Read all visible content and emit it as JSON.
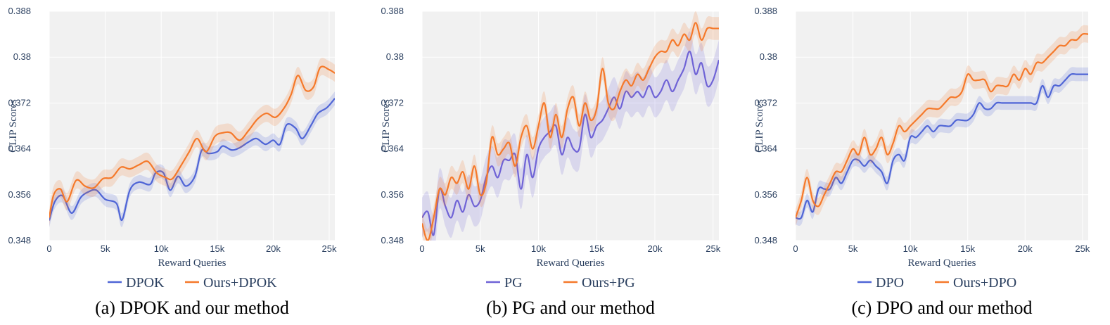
{
  "colors": {
    "plot_bg": "#f1f1f1",
    "grid": "#ffffff",
    "text": "#2a3f5f",
    "blue": "#4f65d6",
    "purple": "#6f63d6",
    "orange": "#f5792a"
  },
  "chart_data": [
    {
      "type": "line",
      "caption": "(a) DPOK and our method",
      "xlabel": "Reward Queries",
      "ylabel": "CLIP Scores",
      "xlim": [
        0,
        25500
      ],
      "ylim": [
        0.348,
        0.388
      ],
      "xticks": [
        0,
        5000,
        10000,
        15000,
        20000,
        25000
      ],
      "xtick_labels": [
        "0",
        "5k",
        "10k",
        "15k",
        "20k",
        "25k"
      ],
      "yticks": [
        0.348,
        0.356,
        0.364,
        0.372,
        0.38,
        0.388
      ],
      "ytick_labels": [
        "0.348",
        "0.356",
        "0.364",
        "0.372",
        "0.38",
        "0.388"
      ],
      "series": [
        {
          "name": "DPOK",
          "color": "#4f65d6",
          "band": 0.0012,
          "x": [
            0,
            500,
            1200,
            2000,
            2800,
            3500,
            4200,
            5000,
            6000,
            6500,
            7200,
            8000,
            9000,
            9500,
            10200,
            10800,
            11500,
            12200,
            13000,
            13600,
            14200,
            15000,
            15500,
            16300,
            17000,
            17800,
            18500,
            19300,
            20000,
            20600,
            21200,
            22000,
            22600,
            23400,
            24000,
            24800,
            25500
          ],
          "values": [
            0.3515,
            0.3548,
            0.3558,
            0.3528,
            0.3555,
            0.3565,
            0.3568,
            0.3552,
            0.3545,
            0.3516,
            0.3568,
            0.3582,
            0.3578,
            0.3598,
            0.3598,
            0.3568,
            0.3592,
            0.3575,
            0.3592,
            0.3637,
            0.3632,
            0.3635,
            0.3645,
            0.3638,
            0.3642,
            0.3652,
            0.3658,
            0.3648,
            0.3655,
            0.3648,
            0.3682,
            0.3676,
            0.3658,
            0.3682,
            0.3702,
            0.3712,
            0.3728
          ]
        },
        {
          "name": "Ours+DPOK",
          "color": "#f5792a",
          "band": 0.0015,
          "x": [
            0,
            400,
            1000,
            1600,
            2400,
            3200,
            4000,
            4800,
            5600,
            6400,
            7200,
            8000,
            8800,
            9600,
            10400,
            11000,
            11800,
            12500,
            13200,
            14000,
            14800,
            15500,
            16200,
            17000,
            17800,
            18600,
            19400,
            20200,
            21000,
            21600,
            22200,
            22900,
            23600,
            24200,
            25000,
            25500
          ],
          "values": [
            0.352,
            0.356,
            0.357,
            0.3548,
            0.3585,
            0.3575,
            0.3572,
            0.3588,
            0.359,
            0.3608,
            0.3605,
            0.3612,
            0.3618,
            0.3598,
            0.359,
            0.3588,
            0.3612,
            0.3635,
            0.3658,
            0.3635,
            0.3662,
            0.3668,
            0.3668,
            0.3655,
            0.3672,
            0.3692,
            0.3702,
            0.3695,
            0.3712,
            0.3735,
            0.3768,
            0.3742,
            0.3748,
            0.3782,
            0.3778,
            0.3772
          ]
        }
      ]
    },
    {
      "type": "line",
      "caption": "(b) PG and our method",
      "xlabel": "Reward Queries",
      "ylabel": "CLIP Scores",
      "xlim": [
        0,
        25500
      ],
      "ylim": [
        0.348,
        0.388
      ],
      "xticks": [
        0,
        5000,
        10000,
        15000,
        20000,
        25000
      ],
      "xtick_labels": [
        "0",
        "5k",
        "10k",
        "15k",
        "20k",
        "25k"
      ],
      "yticks": [
        0.348,
        0.356,
        0.364,
        0.372,
        0.38,
        0.388
      ],
      "ytick_labels": [
        "0.348",
        "0.356",
        "0.364",
        "0.372",
        "0.38",
        "0.388"
      ],
      "series": [
        {
          "name": "PG",
          "color": "#6f63d6",
          "band": 0.0035,
          "x": [
            0,
            500,
            1000,
            1500,
            2000,
            2500,
            3000,
            3500,
            4000,
            4500,
            5000,
            5500,
            6000,
            6500,
            7000,
            7500,
            8000,
            8500,
            9000,
            9500,
            10000,
            10500,
            11000,
            11500,
            12000,
            12500,
            13000,
            13500,
            14000,
            14500,
            15000,
            15500,
            16000,
            16500,
            17000,
            17500,
            18000,
            18500,
            19000,
            19500,
            20000,
            20500,
            21000,
            21500,
            22000,
            22500,
            23000,
            23500,
            24000,
            24500,
            25000,
            25500
          ],
          "values": [
            0.352,
            0.353,
            0.349,
            0.357,
            0.354,
            0.352,
            0.355,
            0.353,
            0.356,
            0.354,
            0.355,
            0.359,
            0.361,
            0.359,
            0.362,
            0.362,
            0.363,
            0.357,
            0.363,
            0.359,
            0.364,
            0.366,
            0.367,
            0.368,
            0.363,
            0.366,
            0.364,
            0.364,
            0.37,
            0.366,
            0.368,
            0.369,
            0.371,
            0.373,
            0.371,
            0.374,
            0.373,
            0.374,
            0.373,
            0.375,
            0.373,
            0.374,
            0.376,
            0.374,
            0.376,
            0.378,
            0.381,
            0.377,
            0.379,
            0.375,
            0.376,
            0.3795
          ]
        },
        {
          "name": "Ours+PG",
          "color": "#f5792a",
          "band": 0.002,
          "x": [
            0,
            500,
            1000,
            1500,
            2000,
            2500,
            3000,
            3500,
            4000,
            4500,
            5000,
            5500,
            6000,
            6500,
            7000,
            7500,
            8000,
            8500,
            9000,
            9500,
            10000,
            10500,
            11000,
            11500,
            12000,
            12500,
            13000,
            13500,
            14000,
            14500,
            15000,
            15500,
            16000,
            16500,
            17000,
            17500,
            18000,
            18500,
            19000,
            19500,
            20000,
            20500,
            21000,
            21500,
            22000,
            22500,
            23000,
            23500,
            24000,
            24500,
            25000,
            25500
          ],
          "values": [
            0.351,
            0.348,
            0.352,
            0.357,
            0.356,
            0.359,
            0.358,
            0.36,
            0.357,
            0.361,
            0.356,
            0.358,
            0.366,
            0.363,
            0.364,
            0.365,
            0.361,
            0.366,
            0.368,
            0.364,
            0.368,
            0.372,
            0.366,
            0.37,
            0.366,
            0.371,
            0.373,
            0.368,
            0.372,
            0.369,
            0.371,
            0.378,
            0.372,
            0.371,
            0.374,
            0.376,
            0.375,
            0.377,
            0.376,
            0.378,
            0.38,
            0.381,
            0.381,
            0.383,
            0.382,
            0.384,
            0.383,
            0.386,
            0.383,
            0.385,
            0.385,
            0.385
          ]
        }
      ]
    },
    {
      "type": "line",
      "caption": "(c) DPO and our method",
      "xlabel": "Reward Queries",
      "ylabel": "CLIP Scores",
      "xlim": [
        0,
        25500
      ],
      "ylim": [
        0.348,
        0.388
      ],
      "xticks": [
        0,
        5000,
        10000,
        15000,
        20000,
        25000
      ],
      "xtick_labels": [
        "0",
        "5k",
        "10k",
        "15k",
        "20k",
        "25k"
      ],
      "yticks": [
        0.348,
        0.356,
        0.364,
        0.372,
        0.38,
        0.388
      ],
      "ytick_labels": [
        "0.348",
        "0.356",
        "0.364",
        "0.372",
        "0.38",
        "0.388"
      ],
      "series": [
        {
          "name": "DPO",
          "color": "#4f65d6",
          "band": 0.0012,
          "x": [
            0,
            500,
            1000,
            1500,
            2000,
            2500,
            3000,
            3500,
            4000,
            4500,
            5000,
            5500,
            6000,
            6500,
            7000,
            7500,
            8000,
            8500,
            9000,
            9500,
            10000,
            10500,
            11000,
            11500,
            12000,
            12500,
            13000,
            13500,
            14000,
            14500,
            15000,
            15500,
            16000,
            16500,
            17000,
            17500,
            18000,
            18500,
            19000,
            19500,
            20000,
            20500,
            21000,
            21500,
            22000,
            22500,
            23000,
            23500,
            24000,
            24500,
            25000,
            25500
          ],
          "values": [
            0.352,
            0.352,
            0.355,
            0.353,
            0.357,
            0.357,
            0.357,
            0.359,
            0.358,
            0.36,
            0.362,
            0.362,
            0.361,
            0.362,
            0.361,
            0.36,
            0.358,
            0.362,
            0.363,
            0.362,
            0.366,
            0.366,
            0.367,
            0.368,
            0.367,
            0.368,
            0.368,
            0.368,
            0.369,
            0.369,
            0.369,
            0.37,
            0.372,
            0.371,
            0.371,
            0.372,
            0.372,
            0.372,
            0.372,
            0.372,
            0.372,
            0.372,
            0.372,
            0.375,
            0.373,
            0.375,
            0.375,
            0.376,
            0.377,
            0.377,
            0.377,
            0.377
          ]
        },
        {
          "name": "Ours+DPO",
          "color": "#f5792a",
          "band": 0.0015,
          "x": [
            0,
            500,
            1000,
            1500,
            2000,
            2500,
            3000,
            3500,
            4000,
            4500,
            5000,
            5500,
            6000,
            6500,
            7000,
            7500,
            8000,
            8500,
            9000,
            9500,
            10000,
            10500,
            11000,
            11500,
            12000,
            12500,
            13000,
            13500,
            14000,
            14500,
            15000,
            15500,
            16000,
            16500,
            17000,
            17500,
            18000,
            18500,
            19000,
            19500,
            20000,
            20500,
            21000,
            21500,
            22000,
            22500,
            23000,
            23500,
            24000,
            24500,
            25000,
            25500
          ],
          "values": [
            0.352,
            0.355,
            0.359,
            0.355,
            0.354,
            0.356,
            0.358,
            0.36,
            0.36,
            0.362,
            0.364,
            0.363,
            0.366,
            0.363,
            0.364,
            0.366,
            0.363,
            0.365,
            0.368,
            0.367,
            0.368,
            0.369,
            0.37,
            0.371,
            0.371,
            0.371,
            0.372,
            0.373,
            0.373,
            0.374,
            0.377,
            0.376,
            0.376,
            0.376,
            0.374,
            0.375,
            0.375,
            0.375,
            0.377,
            0.376,
            0.378,
            0.377,
            0.379,
            0.379,
            0.38,
            0.381,
            0.382,
            0.382,
            0.383,
            0.383,
            0.384,
            0.384
          ]
        }
      ]
    }
  ]
}
